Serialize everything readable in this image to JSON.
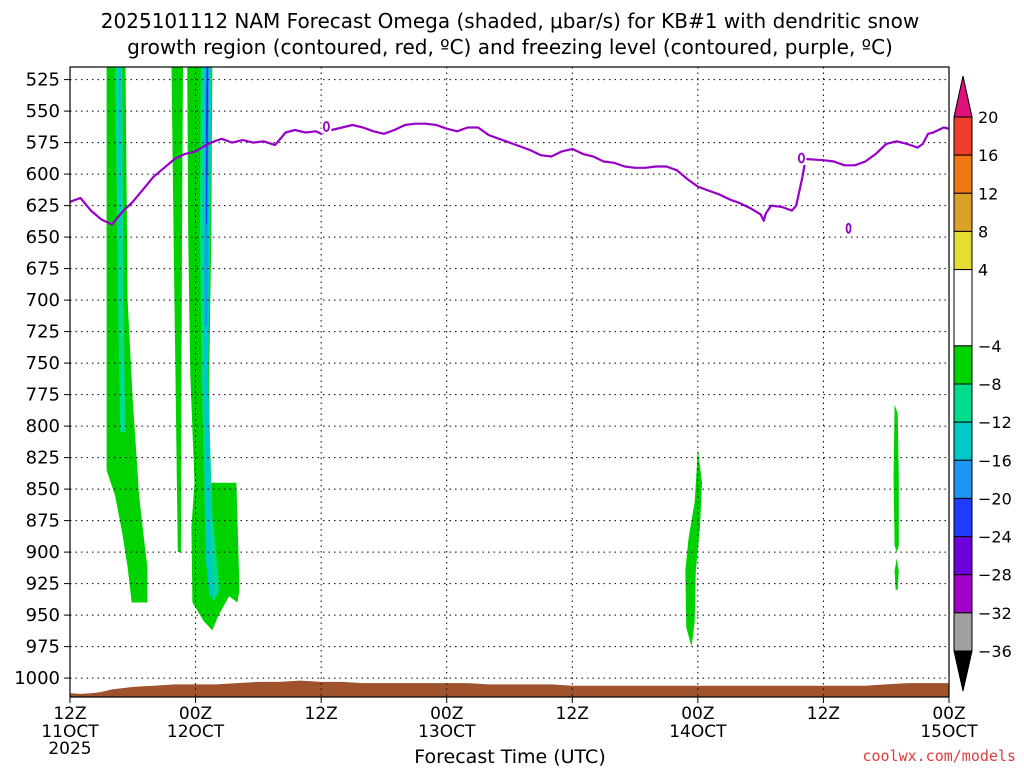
{
  "chart_data": {
    "type": "heatmap",
    "title": [
      "2025101112 NAM Forecast Omega (shaded, μbar/s) for KB#1 with dendritic snow",
      "growth region (contoured, red, ºC) and freezing level (contoured, purple, ºC)"
    ],
    "xlabel": "Forecast Time (UTC)",
    "ylabel": "",
    "credit": "coolwx.com/models",
    "x_range_hours": [
      0,
      84
    ],
    "x_ticks": [
      {
        "hour": 0,
        "time": "12Z",
        "date": "11OCT",
        "year": "2025"
      },
      {
        "hour": 12,
        "time": "00Z",
        "date": "12OCT",
        "year": ""
      },
      {
        "hour": 24,
        "time": "12Z",
        "date": "",
        "year": ""
      },
      {
        "hour": 36,
        "time": "00Z",
        "date": "13OCT",
        "year": ""
      },
      {
        "hour": 48,
        "time": "12Z",
        "date": "",
        "year": ""
      },
      {
        "hour": 60,
        "time": "00Z",
        "date": "14OCT",
        "year": ""
      },
      {
        "hour": 72,
        "time": "12Z",
        "date": "",
        "year": ""
      },
      {
        "hour": 84,
        "time": "00Z",
        "date": "15OCT",
        "year": ""
      }
    ],
    "y_range_hpa": [
      1015,
      515
    ],
    "y_ticks": [
      "525",
      "550",
      "575",
      "600",
      "625",
      "650",
      "675",
      "700",
      "725",
      "750",
      "775",
      "800",
      "825",
      "850",
      "875",
      "900",
      "925",
      "950",
      "975",
      "1000"
    ],
    "colorbar": {
      "labels": [
        "20",
        "16",
        "12",
        "8",
        "4",
        "−4",
        "−8",
        "−12",
        "−16",
        "−20",
        "−24",
        "−28",
        "−32",
        "−36"
      ],
      "bins": [
        {
          "from": 20,
          "to": 24,
          "color": "#e0107a"
        },
        {
          "from": 16,
          "to": 20,
          "color": "#f03c28"
        },
        {
          "from": 12,
          "to": 16,
          "color": "#f07814"
        },
        {
          "from": 8,
          "to": 12,
          "color": "#dca028"
        },
        {
          "from": 4,
          "to": 8,
          "color": "#e6dc32"
        },
        {
          "from": -4,
          "to": 4,
          "color": "#ffffff"
        },
        {
          "from": -8,
          "to": -4,
          "color": "#00d200"
        },
        {
          "from": -12,
          "to": -8,
          "color": "#00dc8c"
        },
        {
          "from": -16,
          "to": -12,
          "color": "#00c8c8"
        },
        {
          "from": -20,
          "to": -16,
          "color": "#1e96f0"
        },
        {
          "from": -24,
          "to": -20,
          "color": "#1e3cff"
        },
        {
          "from": -28,
          "to": -24,
          "color": "#6e00dc"
        },
        {
          "from": -32,
          "to": -28,
          "color": "#a000c8"
        },
        {
          "from": -36,
          "to": -32,
          "color": "#a0a0a0"
        },
        {
          "from": -40,
          "to": -36,
          "color": "#000000"
        }
      ]
    },
    "omega_regions": [
      {
        "value_bin": "-8 to -4",
        "color": "#00d200",
        "polygon_hour_hpa": [
          [
            3.5,
            515
          ],
          [
            5.3,
            515
          ],
          [
            5.5,
            700
          ],
          [
            6.0,
            780
          ],
          [
            6.6,
            855
          ],
          [
            7.0,
            885
          ],
          [
            7.4,
            912
          ],
          [
            7.4,
            940
          ],
          [
            5.9,
            940
          ],
          [
            5.5,
            912
          ],
          [
            5.0,
            885
          ],
          [
            4.3,
            855
          ],
          [
            3.5,
            835
          ]
        ]
      },
      {
        "value_bin": "-12 to -8",
        "color": "#00dc8c",
        "polygon_hour_hpa": [
          [
            4.3,
            515
          ],
          [
            5.0,
            515
          ],
          [
            5.1,
            700
          ],
          [
            5.3,
            805
          ],
          [
            4.8,
            805
          ],
          [
            4.6,
            700
          ]
        ]
      },
      {
        "value_bin": "-16 to -12",
        "color": "#00c8c8",
        "polygon_hour_hpa": [
          [
            4.6,
            515
          ],
          [
            4.9,
            515
          ],
          [
            4.9,
            650
          ],
          [
            4.7,
            650
          ]
        ]
      },
      {
        "value_bin": "-8 to -4",
        "color": "#00d200",
        "polygon_hour_hpa": [
          [
            9.7,
            515
          ],
          [
            10.8,
            515
          ],
          [
            10.7,
            650
          ],
          [
            10.6,
            900
          ],
          [
            10.3,
            900
          ],
          [
            9.9,
            650
          ]
        ]
      },
      {
        "value_bin": "-8 to -4",
        "color": "#00d200",
        "polygon_hour_hpa": [
          [
            11.2,
            515
          ],
          [
            13.6,
            515
          ],
          [
            13.5,
            650
          ],
          [
            13.3,
            760
          ],
          [
            13.4,
            845
          ],
          [
            15.9,
            845
          ],
          [
            16.2,
            930
          ],
          [
            16.0,
            940
          ],
          [
            15.2,
            935
          ],
          [
            14.2,
            950
          ],
          [
            13.6,
            962
          ],
          [
            12.8,
            955
          ],
          [
            11.7,
            940
          ],
          [
            11.6,
            880
          ],
          [
            11.9,
            845
          ],
          [
            11.5,
            760
          ],
          [
            11.3,
            650
          ]
        ]
      },
      {
        "value_bin": "-12 to -8",
        "color": "#00dc8c",
        "polygon_hour_hpa": [
          [
            12.5,
            515
          ],
          [
            13.5,
            515
          ],
          [
            13.4,
            650
          ],
          [
            13.2,
            760
          ],
          [
            13.6,
            870
          ],
          [
            14.3,
            930
          ],
          [
            13.7,
            940
          ],
          [
            13.0,
            910
          ],
          [
            12.6,
            760
          ],
          [
            12.4,
            650
          ]
        ]
      },
      {
        "value_bin": "-16 to -12",
        "color": "#00c8c8",
        "polygon_hour_hpa": [
          [
            12.8,
            515
          ],
          [
            13.3,
            515
          ],
          [
            13.3,
            650
          ],
          [
            13.2,
            760
          ],
          [
            13.5,
            900
          ],
          [
            13.7,
            935
          ],
          [
            13.3,
            935
          ],
          [
            13.0,
            900
          ],
          [
            12.8,
            760
          ],
          [
            12.7,
            650
          ]
        ]
      },
      {
        "value_bin": "-20 to -16",
        "color": "#1e96f0",
        "polygon_hour_hpa": [
          [
            13.0,
            515
          ],
          [
            13.3,
            515
          ],
          [
            13.2,
            600
          ],
          [
            13.1,
            720
          ],
          [
            12.9,
            720
          ],
          [
            12.9,
            600
          ]
        ]
      },
      {
        "value_bin": "-24 to -20",
        "color": "#1e3cff",
        "polygon_hour_hpa": [
          [
            13.05,
            515
          ],
          [
            13.2,
            515
          ],
          [
            13.15,
            560
          ],
          [
            13.1,
            640
          ],
          [
            13.0,
            640
          ],
          [
            13.0,
            560
          ]
        ]
      },
      {
        "value_bin": "-28 to -24",
        "color": "#6e00dc",
        "polygon_hour_hpa": [
          [
            13.08,
            530
          ],
          [
            13.17,
            530
          ],
          [
            13.13,
            600
          ],
          [
            13.07,
            600
          ]
        ]
      },
      {
        "value_bin": "-8 to -4",
        "color": "#00d200",
        "polygon_hour_hpa": [
          [
            60.0,
            818
          ],
          [
            60.4,
            845
          ],
          [
            60.2,
            880
          ],
          [
            59.8,
            915
          ],
          [
            59.7,
            955
          ],
          [
            59.4,
            975
          ],
          [
            58.9,
            960
          ],
          [
            58.8,
            915
          ],
          [
            59.1,
            890
          ],
          [
            59.7,
            860
          ]
        ]
      },
      {
        "value_bin": "-8 to -4",
        "color": "#00d200",
        "polygon_hour_hpa": [
          [
            78.8,
            783
          ],
          [
            79.1,
            790
          ],
          [
            79.2,
            840
          ],
          [
            79.2,
            895
          ],
          [
            79.0,
            900
          ],
          [
            78.8,
            895
          ],
          [
            78.7,
            840
          ]
        ]
      },
      {
        "value_bin": "-8 to -4",
        "color": "#00d200",
        "polygon_hour_hpa": [
          [
            79.0,
            905
          ],
          [
            79.2,
            915
          ],
          [
            79.1,
            930
          ],
          [
            78.9,
            930
          ],
          [
            78.8,
            915
          ]
        ]
      }
    ],
    "terrain": {
      "color": "#a0522d",
      "surface_hour_hpa": [
        [
          0,
          1012
        ],
        [
          1,
          1012.5
        ],
        [
          2,
          1012
        ],
        [
          3,
          1011
        ],
        [
          4,
          1009
        ],
        [
          6,
          1007
        ],
        [
          8,
          1006
        ],
        [
          10,
          1005
        ],
        [
          12,
          1005
        ],
        [
          14,
          1005
        ],
        [
          16,
          1004
        ],
        [
          18,
          1003
        ],
        [
          20,
          1003
        ],
        [
          22,
          1002
        ],
        [
          24,
          1003
        ],
        [
          26,
          1003
        ],
        [
          28,
          1004
        ],
        [
          30,
          1004
        ],
        [
          32,
          1004
        ],
        [
          34,
          1004
        ],
        [
          36,
          1004
        ],
        [
          38,
          1004
        ],
        [
          40,
          1005
        ],
        [
          42,
          1005
        ],
        [
          44,
          1005
        ],
        [
          46,
          1005
        ],
        [
          48,
          1006
        ],
        [
          52,
          1006
        ],
        [
          56,
          1006
        ],
        [
          60,
          1006
        ],
        [
          64,
          1006
        ],
        [
          68,
          1006
        ],
        [
          72,
          1006
        ],
        [
          76,
          1006
        ],
        [
          78,
          1005
        ],
        [
          80,
          1004
        ],
        [
          82,
          1004
        ],
        [
          84,
          1004
        ]
      ]
    },
    "freezing_level": {
      "color": "#9600c8",
      "line_hour_hpa": [
        [
          0,
          622
        ],
        [
          1,
          619
        ],
        [
          2,
          629
        ],
        [
          3,
          636
        ],
        [
          4,
          640
        ],
        [
          5,
          630
        ],
        [
          6,
          622
        ],
        [
          7,
          612
        ],
        [
          8,
          602
        ],
        [
          9,
          595
        ],
        [
          10,
          588
        ],
        [
          11,
          584
        ],
        [
          12,
          582
        ],
        [
          13,
          577
        ],
        [
          13.8,
          574
        ],
        [
          14.5,
          572
        ],
        [
          15.5,
          575
        ],
        [
          16.5,
          573
        ],
        [
          17.5,
          575
        ],
        [
          18.5,
          574
        ],
        [
          19.6,
          577
        ],
        [
          20.6,
          567
        ],
        [
          21.5,
          565
        ],
        [
          22.5,
          567
        ],
        [
          23.5,
          566
        ],
        [
          24,
          568
        ],
        [
          25,
          565
        ],
        [
          26,
          563
        ],
        [
          27,
          561
        ],
        [
          28,
          563
        ],
        [
          29,
          566
        ],
        [
          30,
          568
        ],
        [
          31,
          565
        ],
        [
          32,
          561
        ],
        [
          33,
          560
        ],
        [
          34,
          560
        ],
        [
          35,
          561
        ],
        [
          36,
          564
        ],
        [
          37,
          566
        ],
        [
          38,
          563
        ],
        [
          39,
          563
        ],
        [
          40,
          569
        ],
        [
          41,
          572
        ],
        [
          42,
          575
        ],
        [
          43,
          578
        ],
        [
          44,
          581
        ],
        [
          45,
          585
        ],
        [
          46,
          586
        ],
        [
          47,
          582
        ],
        [
          48,
          580
        ],
        [
          49,
          584
        ],
        [
          50,
          586
        ],
        [
          51,
          590
        ],
        [
          52,
          591
        ],
        [
          53,
          594
        ],
        [
          54,
          595
        ],
        [
          55,
          595
        ],
        [
          56,
          594
        ],
        [
          57,
          594
        ],
        [
          58,
          597
        ],
        [
          59,
          604
        ],
        [
          60,
          610
        ],
        [
          61,
          613
        ],
        [
          62,
          616
        ],
        [
          63,
          620
        ],
        [
          64,
          623
        ],
        [
          65,
          627
        ],
        [
          66,
          632
        ],
        [
          66.3,
          637
        ],
        [
          66.5,
          631
        ],
        [
          67,
          625
        ],
        [
          68,
          626
        ],
        [
          69,
          629
        ],
        [
          69.4,
          625
        ],
        [
          70,
          602
        ],
        [
          70.3,
          588
        ],
        [
          72,
          589
        ],
        [
          73,
          590
        ],
        [
          74,
          593
        ],
        [
          75,
          593
        ],
        [
          76,
          590
        ],
        [
          77,
          584
        ],
        [
          78,
          576
        ],
        [
          79,
          574
        ],
        [
          80,
          576
        ],
        [
          81,
          579
        ],
        [
          81.5,
          576
        ],
        [
          82,
          568
        ],
        [
          82.5,
          567
        ],
        [
          83,
          565
        ],
        [
          83.5,
          563
        ],
        [
          84,
          564
        ]
      ],
      "labels": [
        {
          "hour": 24.5,
          "hpa": 563
        },
        {
          "hour": 69.9,
          "hpa": 588
        }
      ],
      "small_loop": {
        "hour": 74.4,
        "hpa": 643
      }
    }
  }
}
